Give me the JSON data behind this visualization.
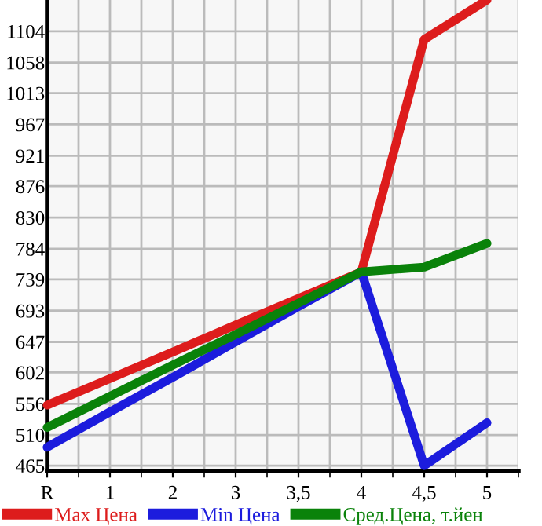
{
  "chart_data": {
    "type": "line",
    "categories": [
      "R",
      "1",
      "2",
      "3",
      "3,5",
      "4",
      "4,5",
      "5"
    ],
    "series": [
      {
        "name": "Max Цена",
        "color": "#dd1c1c",
        "values": [
          554,
          593,
          632,
          672,
          711,
          750,
          1092,
          1150
        ]
      },
      {
        "name": "Min Цена",
        "color": "#1c1cdd",
        "values": [
          492,
          544,
          595,
          647,
          699,
          750,
          465,
          528
        ]
      },
      {
        "name": "Сред.Цена, т.йен",
        "color": "#0a820a",
        "values": [
          521,
          567,
          613,
          658,
          704,
          750,
          757,
          792
        ]
      }
    ],
    "ylim": [
      457,
      1150
    ],
    "yticks": [
      465,
      510,
      556,
      602,
      647,
      693,
      739,
      784,
      830,
      876,
      921,
      967,
      1013,
      1058,
      1104
    ],
    "grid": true,
    "legend": "bottom",
    "marker": "none",
    "line_style": "solid"
  }
}
